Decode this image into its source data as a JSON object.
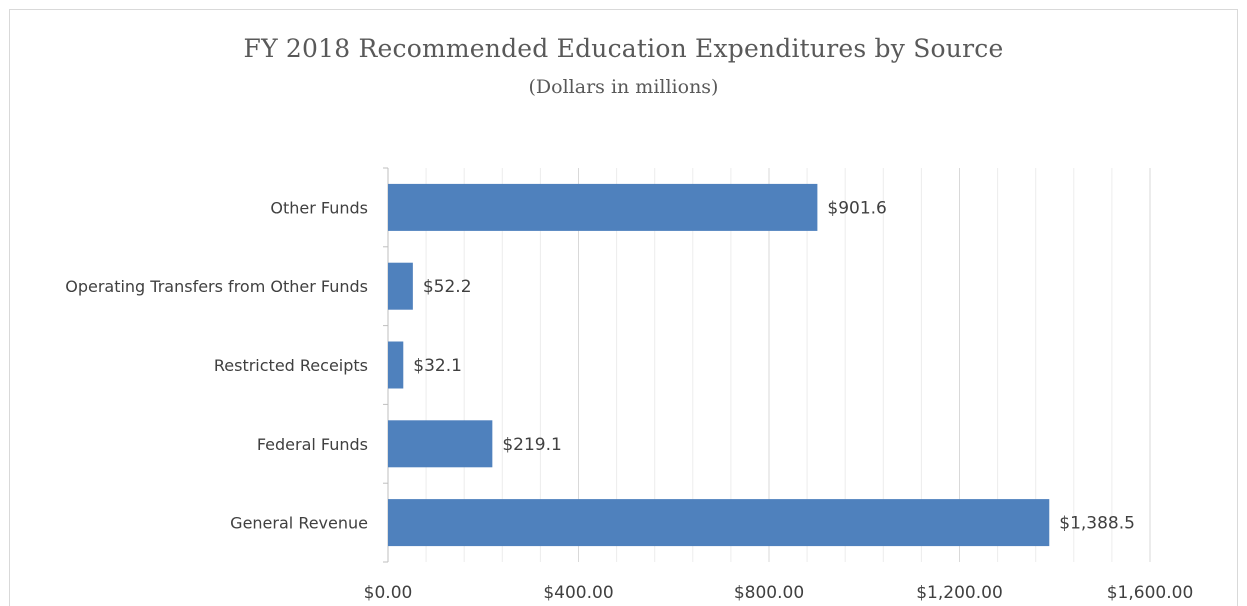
{
  "chart_data": {
    "type": "bar",
    "orientation": "horizontal",
    "title": "FY 2018 Recommended Education Expenditures by Source",
    "subtitle": "(Dollars in millions)",
    "categories": [
      "General Revenue",
      "Federal Funds",
      "Restricted Receipts",
      "Operating Transfers from Other Funds",
      "Other Funds"
    ],
    "values": [
      1388.5,
      219.1,
      32.1,
      52.2,
      901.6
    ],
    "data_labels": [
      "$1,388.5",
      "$219.1",
      "$32.1",
      "$52.2",
      "$901.6"
    ],
    "xlim": [
      0,
      1600
    ],
    "x_major_ticks": [
      0,
      400,
      800,
      1200,
      1600
    ],
    "x_tick_labels": [
      "$0.00",
      "$400.00",
      "$800.00",
      "$1,200.00",
      "$1,600.00"
    ],
    "x_minor_step": 80,
    "grid": true,
    "legend": "none",
    "bar_color": "#4f81bd",
    "gridline_color": "#d9d9d9",
    "minor_gridline_color": "#ececec"
  }
}
